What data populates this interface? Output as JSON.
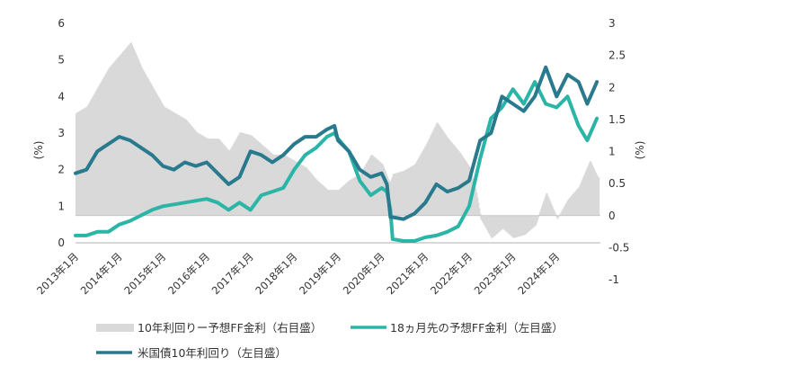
{
  "chart_data": {
    "type": "line",
    "x_start": "2013年1月",
    "x_end": "2024年12月",
    "x_tick_labels": [
      "2013年1月",
      "2014年1月",
      "2015年1月",
      "2016年1月",
      "2017年1月",
      "2018年1月",
      "2019年1月",
      "2020年1月",
      "2021年1月",
      "2022年1月",
      "2023年1月",
      "2024年1月"
    ],
    "left_axis": {
      "unit": "(%)",
      "ylim": [
        0,
        6
      ],
      "ticks": [
        "0",
        "1",
        "2",
        "3",
        "4",
        "5",
        "6"
      ]
    },
    "right_axis": {
      "unit": "(%)",
      "ylim": [
        -1,
        3
      ],
      "ticks": [
        "-1",
        "-0.5",
        "0",
        "0.5",
        "1",
        "1.5",
        "2",
        "2.5",
        "3"
      ]
    },
    "series": [
      {
        "name": "10年利回りー予想FF金利（右目盛）",
        "kind": "bar",
        "axis": "right",
        "color": "#d9d9d9",
        "x": [
          2013.0,
          2013.25,
          2013.5,
          2013.75,
          2014.0,
          2014.25,
          2014.5,
          2014.75,
          2015.0,
          2015.25,
          2015.5,
          2015.75,
          2016.0,
          2016.25,
          2016.5,
          2016.75,
          2017.0,
          2017.25,
          2017.5,
          2017.75,
          2018.0,
          2018.25,
          2018.5,
          2018.75,
          2019.0,
          2019.25,
          2019.5,
          2019.75,
          2020.0,
          2020.17,
          2020.25,
          2020.5,
          2020.75,
          2021.0,
          2021.25,
          2021.5,
          2021.75,
          2022.0,
          2022.15,
          2022.25,
          2022.5,
          2022.75,
          2023.0,
          2023.25,
          2023.5,
          2023.75,
          2024.0,
          2024.25,
          2024.5,
          2024.75,
          2024.92
        ],
        "values": [
          1.6,
          1.7,
          2.0,
          2.3,
          2.5,
          2.7,
          2.3,
          2.0,
          1.7,
          1.6,
          1.5,
          1.3,
          1.2,
          1.2,
          1.0,
          1.3,
          1.25,
          1.1,
          0.95,
          0.95,
          0.85,
          0.75,
          0.55,
          0.4,
          0.4,
          0.55,
          0.65,
          0.95,
          0.8,
          0.5,
          0.65,
          0.7,
          0.8,
          1.1,
          1.45,
          1.2,
          1.0,
          0.75,
          0.35,
          -0.05,
          -0.35,
          -0.2,
          -0.35,
          -0.3,
          -0.15,
          0.35,
          -0.05,
          0.25,
          0.45,
          0.85,
          0.6
        ]
      },
      {
        "name": "18ヵ月先の予想FF金利（左目盛）",
        "kind": "line",
        "axis": "left",
        "color": "#2bb5a6",
        "x": [
          2013.0,
          2013.25,
          2013.5,
          2013.75,
          2014.0,
          2014.25,
          2014.5,
          2014.75,
          2015.0,
          2015.25,
          2015.5,
          2015.75,
          2016.0,
          2016.25,
          2016.5,
          2016.75,
          2017.0,
          2017.25,
          2017.5,
          2017.75,
          2018.0,
          2018.25,
          2018.5,
          2018.75,
          2018.92,
          2019.0,
          2019.25,
          2019.5,
          2019.75,
          2020.0,
          2020.12,
          2020.2,
          2020.25,
          2020.5,
          2020.75,
          2021.0,
          2021.25,
          2021.5,
          2021.75,
          2022.0,
          2022.25,
          2022.5,
          2022.75,
          2023.0,
          2023.25,
          2023.5,
          2023.75,
          2024.0,
          2024.25,
          2024.5,
          2024.7,
          2024.92
        ],
        "values": [
          0.2,
          0.2,
          0.3,
          0.3,
          0.5,
          0.6,
          0.75,
          0.9,
          1.0,
          1.05,
          1.1,
          1.15,
          1.2,
          1.1,
          0.9,
          1.1,
          0.9,
          1.3,
          1.4,
          1.5,
          2.0,
          2.4,
          2.6,
          2.9,
          3.0,
          2.85,
          2.5,
          1.7,
          1.3,
          1.5,
          1.4,
          0.9,
          0.1,
          0.05,
          0.05,
          0.15,
          0.2,
          0.3,
          0.45,
          1.0,
          2.3,
          3.4,
          3.7,
          4.2,
          3.8,
          4.4,
          3.8,
          3.7,
          4.0,
          3.2,
          2.8,
          3.4
        ]
      },
      {
        "name": "米国債10年利回り（左目盛）",
        "kind": "line",
        "axis": "left",
        "color": "#2a7a8e",
        "x": [
          2013.0,
          2013.25,
          2013.5,
          2013.75,
          2014.0,
          2014.25,
          2014.5,
          2014.75,
          2015.0,
          2015.25,
          2015.5,
          2015.75,
          2016.0,
          2016.25,
          2016.5,
          2016.75,
          2017.0,
          2017.25,
          2017.5,
          2017.75,
          2018.0,
          2018.25,
          2018.5,
          2018.75,
          2018.92,
          2019.0,
          2019.25,
          2019.5,
          2019.75,
          2020.0,
          2020.12,
          2020.2,
          2020.25,
          2020.5,
          2020.75,
          2021.0,
          2021.25,
          2021.5,
          2021.75,
          2022.0,
          2022.25,
          2022.5,
          2022.75,
          2023.0,
          2023.25,
          2023.5,
          2023.75,
          2024.0,
          2024.25,
          2024.5,
          2024.7,
          2024.92
        ],
        "values": [
          1.9,
          2.0,
          2.5,
          2.7,
          2.9,
          2.8,
          2.6,
          2.4,
          2.1,
          2.0,
          2.2,
          2.1,
          2.2,
          1.9,
          1.6,
          1.8,
          2.5,
          2.4,
          2.2,
          2.4,
          2.7,
          2.9,
          2.9,
          3.1,
          3.2,
          2.8,
          2.5,
          2.0,
          1.8,
          1.9,
          1.6,
          0.7,
          0.7,
          0.65,
          0.8,
          1.1,
          1.6,
          1.4,
          1.5,
          1.7,
          2.8,
          3.0,
          4.0,
          3.8,
          3.6,
          4.0,
          4.8,
          4.0,
          4.6,
          4.4,
          3.8,
          4.4
        ]
      }
    ]
  }
}
